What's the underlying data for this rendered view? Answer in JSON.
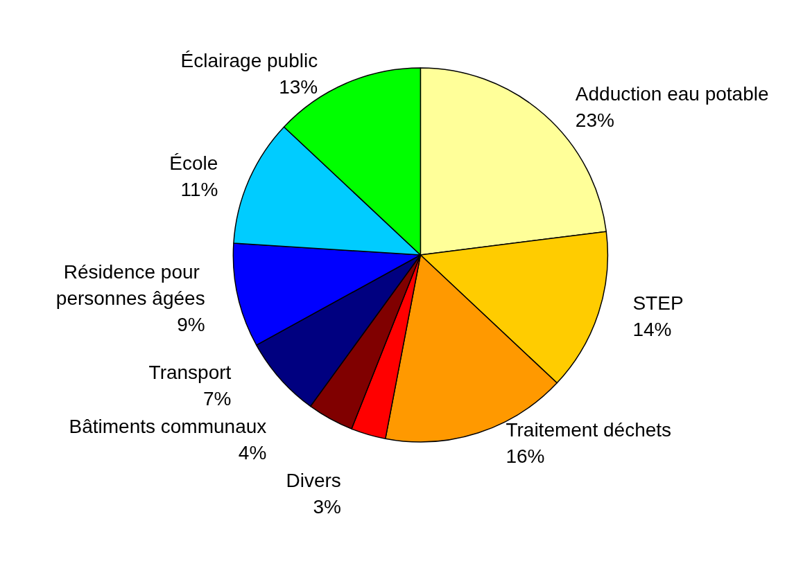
{
  "chart_data": {
    "type": "pie",
    "categories": [
      "Adduction eau potable",
      "STEP",
      "Traitement déchets",
      "Divers",
      "Bâtiments communaux",
      "Transport",
      "Résidence pour personnes âgées",
      "École",
      "Éclairage public"
    ],
    "values": [
      23,
      14,
      16,
      3,
      4,
      7,
      9,
      11,
      13
    ],
    "value_labels": [
      "23%",
      "14%",
      "16%",
      "3%",
      "4%",
      "7%",
      "9%",
      "11%",
      "13%"
    ],
    "colors": [
      "#ffff99",
      "#ffcc00",
      "#ff9900",
      "#ff0000",
      "#800000",
      "#000080",
      "#0000ff",
      "#00ccff",
      "#00ff00"
    ],
    "legend": false
  }
}
